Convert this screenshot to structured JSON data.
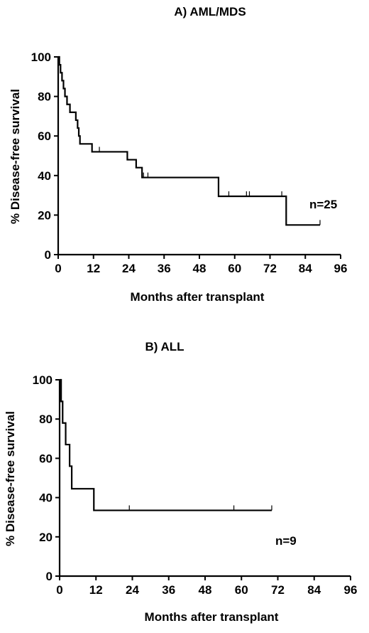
{
  "chart_data": [
    {
      "type": "line",
      "title": "A) AML/MDS",
      "xlabel": "Months after transplant",
      "ylabel": "% Disease-free survival",
      "xlim": [
        0,
        96
      ],
      "ylim": [
        0,
        100
      ],
      "xticks": [
        "0",
        "12",
        "24",
        "36",
        "48",
        "60",
        "72",
        "84",
        "96"
      ],
      "yticks": [
        "0",
        "20",
        "40",
        "60",
        "80",
        "100"
      ],
      "annotation": "n=25",
      "step": true,
      "series": [
        {
          "points": [
            [
              0,
              100
            ],
            [
              0.4,
              96
            ],
            [
              0.8,
              92
            ],
            [
              1.3,
              88
            ],
            [
              1.8,
              84
            ],
            [
              2.3,
              80
            ],
            [
              3,
              76
            ],
            [
              4,
              72
            ],
            [
              6,
              68
            ],
            [
              6.6,
              64
            ],
            [
              7,
              60
            ],
            [
              7.4,
              56
            ],
            [
              11,
              56
            ],
            [
              11.5,
              52
            ],
            [
              23,
              52
            ],
            [
              23.5,
              48
            ],
            [
              26,
              48
            ],
            [
              26.5,
              44
            ],
            [
              28,
              44
            ],
            [
              28.5,
              39
            ],
            [
              54,
              39
            ],
            [
              54.5,
              29.5
            ],
            [
              77,
              29.5
            ],
            [
              77.5,
              15
            ],
            [
              89,
              15
            ]
          ],
          "censored": [
            [
              14,
              52
            ],
            [
              29,
              39
            ],
            [
              30.5,
              39
            ],
            [
              58,
              29.5
            ],
            [
              64,
              29.5
            ],
            [
              65,
              29.5
            ],
            [
              76,
              29.5
            ],
            [
              89,
              15
            ]
          ]
        }
      ]
    },
    {
      "type": "line",
      "title": "B) ALL",
      "xlabel": "Months after transplant",
      "ylabel": "% Disease-free survival",
      "xlim": [
        0,
        96
      ],
      "ylim": [
        0,
        100
      ],
      "xticks": [
        "0",
        "12",
        "24",
        "36",
        "48",
        "60",
        "72",
        "84",
        "96"
      ],
      "yticks": [
        "0",
        "20",
        "40",
        "60",
        "80",
        "100"
      ],
      "annotation": "n=9",
      "step": true,
      "series": [
        {
          "points": [
            [
              0,
              100
            ],
            [
              0.5,
              89
            ],
            [
              1,
              78
            ],
            [
              2,
              67
            ],
            [
              3.3,
              56
            ],
            [
              4,
              44.5
            ],
            [
              11,
              44.5
            ],
            [
              11.3,
              33.5
            ],
            [
              70,
              33.5
            ]
          ],
          "censored": [
            [
              23,
              33.5
            ],
            [
              57.5,
              33.5
            ],
            [
              70,
              33.5
            ]
          ]
        }
      ]
    }
  ]
}
